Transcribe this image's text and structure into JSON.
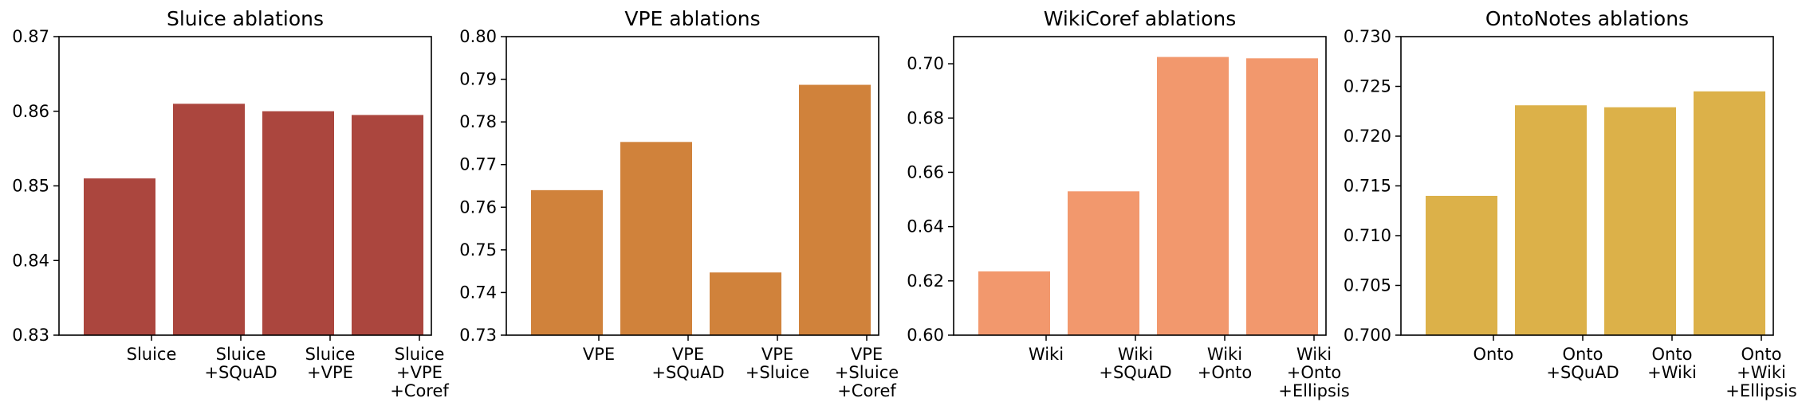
{
  "chart_data": [
    {
      "type": "bar",
      "title": "Sluice ablations",
      "categories": [
        [
          "Sluice"
        ],
        [
          "Sluice",
          "+SQuAD"
        ],
        [
          "Sluice",
          "+VPE"
        ],
        [
          "Sluice",
          "+VPE",
          "+Coref"
        ]
      ],
      "values": [
        0.851,
        0.861,
        0.86,
        0.8595
      ],
      "ylim": [
        0.83,
        0.87
      ],
      "yticks": [
        "0.83",
        "0.84",
        "0.85",
        "0.86",
        "0.87"
      ],
      "color": "#ab463e",
      "xlabel": "",
      "ylabel": ""
    },
    {
      "type": "bar",
      "title": "VPE ablations",
      "categories": [
        [
          "VPE"
        ],
        [
          "VPE",
          "+SQuAD"
        ],
        [
          "VPE",
          "+Sluice"
        ],
        [
          "VPE",
          "+Sluice",
          "+Coref"
        ]
      ],
      "values": [
        0.764,
        0.7753,
        0.7447,
        0.7887
      ],
      "ylim": [
        0.73,
        0.8
      ],
      "yticks": [
        "0.73",
        "0.74",
        "0.75",
        "0.76",
        "0.77",
        "0.78",
        "0.79",
        "0.80"
      ],
      "color": "#d0823b",
      "xlabel": "",
      "ylabel": ""
    },
    {
      "type": "bar",
      "title": "WikiCoref ablations",
      "categories": [
        [
          "Wiki"
        ],
        [
          "Wiki",
          "+SQuAD"
        ],
        [
          "Wiki",
          "+Onto"
        ],
        [
          "Wiki",
          "+Onto",
          "+Ellipsis"
        ]
      ],
      "values": [
        0.6235,
        0.653,
        0.7025,
        0.702
      ],
      "ylim": [
        0.6,
        0.71
      ],
      "yticks": [
        "0.60",
        "0.62",
        "0.64",
        "0.66",
        "0.68",
        "0.70"
      ],
      "color": "#f2986d",
      "xlabel": "",
      "ylabel": ""
    },
    {
      "type": "bar",
      "title": "OntoNotes ablations",
      "categories": [
        [
          "Onto"
        ],
        [
          "Onto",
          "+SQuAD"
        ],
        [
          "Onto",
          "+Wiki"
        ],
        [
          "Onto",
          "+Wiki",
          "+Ellipsis"
        ]
      ],
      "values": [
        0.714,
        0.7231,
        0.7229,
        0.7245
      ],
      "ylim": [
        0.7,
        0.73
      ],
      "yticks": [
        "0.700",
        "0.705",
        "0.710",
        "0.715",
        "0.720",
        "0.725",
        "0.730"
      ],
      "color": "#dcb149",
      "xlabel": "",
      "ylabel": ""
    }
  ]
}
